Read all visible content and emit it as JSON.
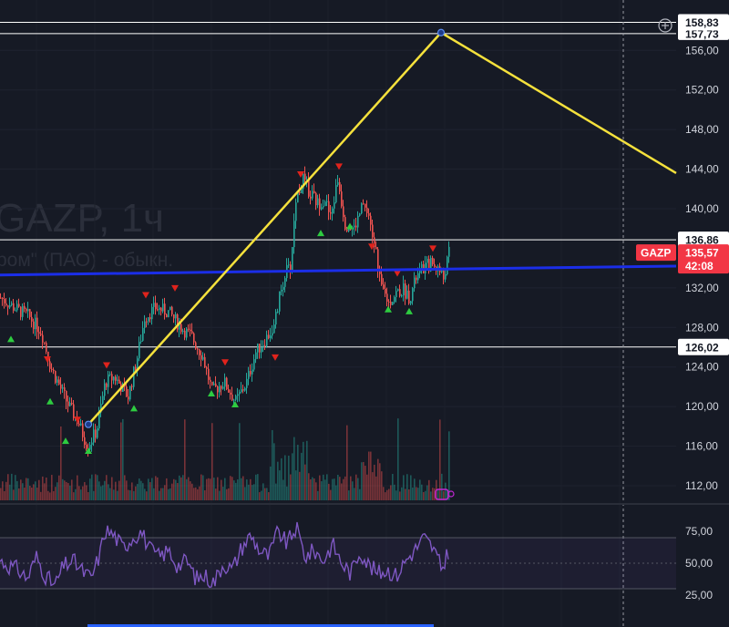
{
  "watermark": {
    "symbol": "GAZP, 1ч",
    "company": "ром\" (ПАО) - обыкн."
  },
  "colors": {
    "background": "#161a25",
    "up": "#26a69a",
    "down": "#ef5350",
    "trendline": "#f5e13c",
    "support_line": "#1b2ee8",
    "horizontal_line": "#ffffff",
    "rsi": "#7e57c2",
    "price_tag": "#f23645",
    "buy_marker": "#2ecc40",
    "sell_marker": "#e0231c"
  },
  "header_icon": "plus-circle-icon",
  "chart_data": [
    {
      "type": "candlestick",
      "title": "",
      "symbol_tag": "GAZP",
      "current_price": "135,57",
      "countdown": "42:08",
      "ylim": [
        110,
        160
      ],
      "ytick_labels": [
        {
          "value": 112,
          "label": "112,00"
        },
        {
          "value": 116,
          "label": "116,00"
        },
        {
          "value": 120,
          "label": "120,00"
        },
        {
          "value": 124,
          "label": "124,00"
        },
        {
          "value": 128,
          "label": "128,00"
        },
        {
          "value": 132,
          "label": "132,00"
        },
        {
          "value": 140,
          "label": "140,00"
        },
        {
          "value": 144,
          "label": "144,00"
        },
        {
          "value": 148,
          "label": "148,00"
        },
        {
          "value": 152,
          "label": "152,00"
        },
        {
          "value": 156,
          "label": "156,00"
        }
      ],
      "horizontal_levels": [
        {
          "value": 158.83,
          "label": "158,83"
        },
        {
          "value": 157.7,
          "label": "157,73"
        },
        {
          "value": 136.86,
          "label": "136,86"
        },
        {
          "value": 126.02,
          "label": "126,02"
        }
      ],
      "support_line": {
        "from": [
          0,
          133.3
        ],
        "to": [
          742,
          134.2
        ]
      },
      "trendline": [
        {
          "bar": 97,
          "price": 118.2
        },
        {
          "bar": 484,
          "price": 157.8
        },
        {
          "bar": 742,
          "price": 143.6
        }
      ],
      "price_path": [
        [
          0,
          131.0
        ],
        [
          15,
          130.0
        ],
        [
          30,
          129.2
        ],
        [
          45,
          127.5
        ],
        [
          55,
          124.0
        ],
        [
          65,
          122.0
        ],
        [
          75,
          120.0
        ],
        [
          85,
          118.5
        ],
        [
          95,
          116.0
        ],
        [
          105,
          117.5
        ],
        [
          115,
          122.5
        ],
        [
          125,
          123.0
        ],
        [
          140,
          121.0
        ],
        [
          150,
          125.0
        ],
        [
          158,
          129.0
        ],
        [
          170,
          130.0
        ],
        [
          185,
          129.5
        ],
        [
          198,
          128.0
        ],
        [
          210,
          127.0
        ],
        [
          222,
          125.0
        ],
        [
          232,
          121.5
        ],
        [
          245,
          122.5
        ],
        [
          258,
          120.5
        ],
        [
          270,
          122.5
        ],
        [
          280,
          125.5
        ],
        [
          292,
          127.0
        ],
        [
          300,
          128.0
        ],
        [
          306,
          131.0
        ],
        [
          312,
          133.5
        ],
        [
          318,
          134.0
        ],
        [
          324,
          141.0
        ],
        [
          332,
          143.0
        ],
        [
          340,
          141.5
        ],
        [
          348,
          140.5
        ],
        [
          356,
          141.0
        ],
        [
          362,
          139.0
        ],
        [
          370,
          143.0
        ],
        [
          378,
          138.5
        ],
        [
          388,
          138.0
        ],
        [
          398,
          140.5
        ],
        [
          406,
          138.0
        ],
        [
          412,
          135.5
        ],
        [
          418,
          132.0
        ],
        [
          426,
          130.5
        ],
        [
          434,
          131.5
        ],
        [
          442,
          131.8
        ],
        [
          449,
          131.0
        ],
        [
          456,
          133.0
        ],
        [
          464,
          134.0
        ],
        [
          472,
          134.5
        ],
        [
          480,
          134.0
        ],
        [
          486,
          133.0
        ],
        [
          492,
          135.57
        ]
      ],
      "volume_max": 45,
      "buy_markers": [
        [
          12,
          126.8
        ],
        [
          55,
          120.5
        ],
        [
          72,
          116.5
        ],
        [
          97,
          115.5
        ],
        [
          147,
          119.8
        ],
        [
          232,
          121.3
        ],
        [
          258,
          120.2
        ],
        [
          352,
          137.5
        ],
        [
          384,
          138.2
        ],
        [
          426,
          129.8
        ],
        [
          449,
          129.6
        ]
      ],
      "sell_markers": [
        [
          52,
          124.8
        ],
        [
          85,
          118.7
        ],
        [
          117,
          124.2
        ],
        [
          160,
          131.3
        ],
        [
          192,
          132.0
        ],
        [
          247,
          124.5
        ],
        [
          302,
          125.0
        ],
        [
          330,
          143.5
        ],
        [
          372,
          144.3
        ],
        [
          408,
          136.2
        ],
        [
          436,
          133.5
        ],
        [
          475,
          136.0
        ]
      ]
    },
    {
      "type": "line",
      "title": "",
      "ylim": [
        20,
        85
      ],
      "levels": [
        70,
        50,
        30
      ],
      "ytick_labels": [
        {
          "value": 75,
          "label": "75,00"
        },
        {
          "value": 50,
          "label": "50,00"
        },
        {
          "value": 25,
          "label": "25,00"
        }
      ],
      "rsi_path": [
        [
          0,
          52
        ],
        [
          10,
          48
        ],
        [
          20,
          45
        ],
        [
          30,
          38
        ],
        [
          40,
          55
        ],
        [
          50,
          40
        ],
        [
          60,
          32
        ],
        [
          70,
          48
        ],
        [
          80,
          52
        ],
        [
          90,
          44
        ],
        [
          100,
          38
        ],
        [
          110,
          58
        ],
        [
          115,
          76
        ],
        [
          125,
          72
        ],
        [
          135,
          62
        ],
        [
          145,
          70
        ],
        [
          155,
          75
        ],
        [
          165,
          60
        ],
        [
          175,
          55
        ],
        [
          185,
          60
        ],
        [
          195,
          48
        ],
        [
          205,
          52
        ],
        [
          215,
          38
        ],
        [
          225,
          40
        ],
        [
          235,
          35
        ],
        [
          245,
          50
        ],
        [
          255,
          45
        ],
        [
          265,
          62
        ],
        [
          275,
          72
        ],
        [
          285,
          60
        ],
        [
          295,
          55
        ],
        [
          305,
          75
        ],
        [
          315,
          65
        ],
        [
          325,
          78
        ],
        [
          335,
          55
        ],
        [
          345,
          60
        ],
        [
          355,
          52
        ],
        [
          365,
          65
        ],
        [
          375,
          50
        ],
        [
          385,
          42
        ],
        [
          395,
          60
        ],
        [
          405,
          48
        ],
        [
          415,
          42
        ],
        [
          425,
          45
        ],
        [
          435,
          40
        ],
        [
          445,
          52
        ],
        [
          455,
          60
        ],
        [
          465,
          70
        ],
        [
          475,
          62
        ],
        [
          485,
          45
        ],
        [
          492,
          60
        ]
      ]
    }
  ]
}
